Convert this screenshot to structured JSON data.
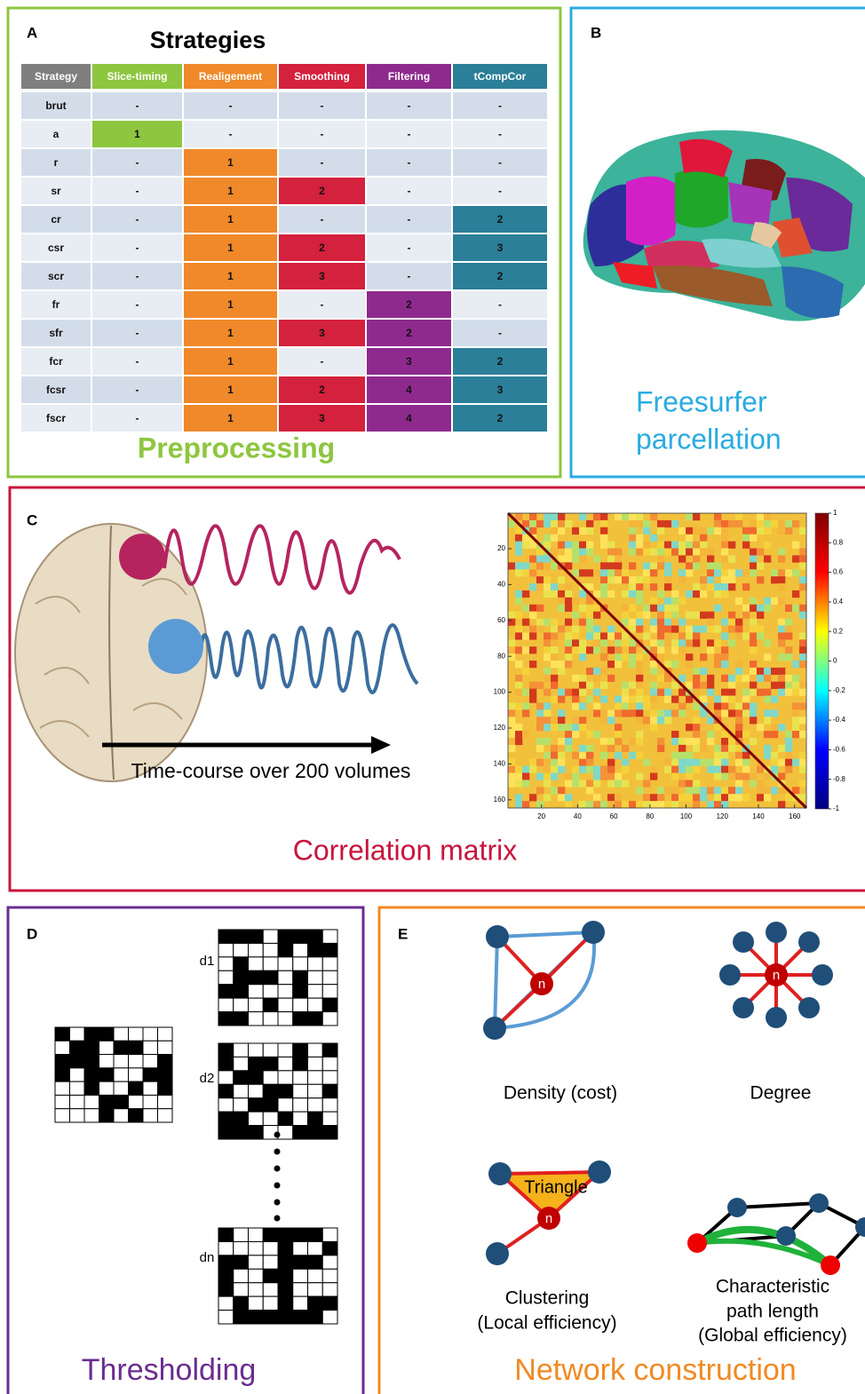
{
  "panels": {
    "A": {
      "letter": "A",
      "title": "Strategies",
      "caption": "Preprocessing",
      "table": {
        "header": [
          "Strategy",
          "Slice-timing",
          "Realigement",
          "Smoothing",
          "Filtering",
          "tCompCor"
        ],
        "column_colors": [
          "#7f7f7f",
          "#8dc63f",
          "#f0892a",
          "#d4213d",
          "#8e2a8e",
          "#2b7f98"
        ],
        "rows": [
          [
            "brut",
            "-",
            "-",
            "-",
            "-",
            "-"
          ],
          [
            "a",
            "1",
            "-",
            "-",
            "-",
            "-"
          ],
          [
            "r",
            "-",
            "1",
            "-",
            "-",
            "-"
          ],
          [
            "sr",
            "-",
            "1",
            "2",
            "-",
            "-"
          ],
          [
            "cr",
            "-",
            "1",
            "-",
            "-",
            "2"
          ],
          [
            "csr",
            "-",
            "1",
            "2",
            "-",
            "3"
          ],
          [
            "scr",
            "-",
            "1",
            "3",
            "-",
            "2"
          ],
          [
            "fr",
            "-",
            "1",
            "-",
            "2",
            "-"
          ],
          [
            "sfr",
            "-",
            "1",
            "3",
            "2",
            "-"
          ],
          [
            "fcr",
            "-",
            "1",
            "-",
            "3",
            "2"
          ],
          [
            "fcsr",
            "-",
            "1",
            "2",
            "4",
            "3"
          ],
          [
            "fscr",
            "-",
            "1",
            "3",
            "4",
            "2"
          ]
        ]
      }
    },
    "B": {
      "letter": "B",
      "caption_lines": [
        "Freesurfer",
        "parcellation"
      ]
    },
    "C": {
      "letter": "C",
      "timecourse_label": "Time-course over 200 volumes",
      "caption": "Correlation matrix",
      "matrix": {
        "xticks": [
          20,
          40,
          60,
          80,
          100,
          120,
          140,
          160
        ],
        "yticks": [
          20,
          40,
          60,
          80,
          100,
          120,
          140,
          160
        ],
        "colorbar_ticks": [
          1,
          0.8,
          0.6,
          0.4,
          0.2,
          0,
          -0.2,
          -0.4,
          -0.6,
          -0.8,
          -1
        ]
      }
    },
    "D": {
      "letter": "D",
      "labels": [
        "d1",
        "d2",
        "dn"
      ],
      "caption": "Thresholding"
    },
    "E": {
      "letter": "E",
      "node_label": "n",
      "triangle_label": "Triangle",
      "measures": [
        [
          "Density (cost)"
        ],
        [
          "Degree"
        ],
        [
          "Clustering",
          "(Local efficiency)"
        ],
        [
          "Characteristic",
          "path length",
          "(Global efficiency)"
        ]
      ],
      "caption": "Network construction"
    }
  }
}
